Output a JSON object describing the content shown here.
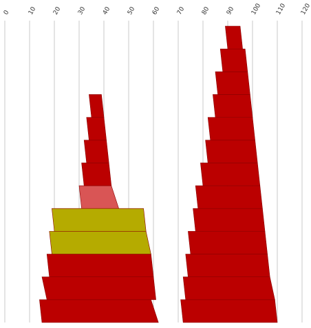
{
  "chart_data": {
    "type": "area",
    "title": "",
    "xlabel": "",
    "ylabel": "",
    "x_axis": {
      "range": [
        0,
        120
      ],
      "ticks": [
        0,
        10,
        20,
        30,
        40,
        50,
        60,
        70,
        80,
        90,
        100,
        110,
        120
      ],
      "tick_labels": [
        "0",
        "10",
        "20",
        "30",
        "40",
        "50",
        "60",
        "70",
        "80",
        "90",
        "100",
        "110",
        "120"
      ],
      "position": "top",
      "grid": true
    },
    "colors": {
      "red": "#bb0000",
      "light_red": "#d95555",
      "olive": "#b5ab00",
      "grid": "#c8c8c8"
    },
    "stacks": [
      {
        "name": "left",
        "bands": [
          {
            "color": "red",
            "left": [
              15,
              14
            ],
            "right": [
              62,
              59
            ]
          },
          {
            "color": "red",
            "left": [
              17,
              15
            ],
            "right": [
              61,
              60
            ]
          },
          {
            "color": "red",
            "left": [
              18,
              17
            ],
            "right": [
              60,
              59
            ]
          },
          {
            "color": "olive",
            "left": [
              19,
              18
            ],
            "right": [
              59,
              57
            ]
          },
          {
            "color": "olive",
            "left": [
              20,
              19
            ],
            "right": [
              57,
              56
            ]
          },
          {
            "color": "light_red",
            "left": [
              31,
              30
            ],
            "right": [
              46,
              43
            ]
          },
          {
            "color": "red",
            "left": [
              32,
              31
            ],
            "right": [
              43,
              42
            ]
          },
          {
            "color": "red",
            "left": [
              33,
              32
            ],
            "right": [
              42,
              41
            ]
          },
          {
            "color": "red",
            "left": [
              34,
              33
            ],
            "right": [
              41,
              40
            ]
          },
          {
            "color": "red",
            "left": [
              35,
              34
            ],
            "right": [
              40,
              39
            ]
          }
        ]
      },
      {
        "name": "right",
        "bands": [
          {
            "color": "red",
            "left": [
              72,
              71
            ],
            "right": [
              110,
              109
            ]
          },
          {
            "color": "red",
            "left": [
              73,
              72
            ],
            "right": [
              109,
              107
            ]
          },
          {
            "color": "red",
            "left": [
              74,
              73
            ],
            "right": [
              107,
              106
            ]
          },
          {
            "color": "red",
            "left": [
              75,
              74
            ],
            "right": [
              106,
              105
            ]
          },
          {
            "color": "red",
            "left": [
              77,
              76
            ],
            "right": [
              105,
              104
            ]
          },
          {
            "color": "red",
            "left": [
              78,
              77
            ],
            "right": [
              104,
              103
            ]
          },
          {
            "color": "red",
            "left": [
              80,
              79
            ],
            "right": [
              103,
              102
            ]
          },
          {
            "color": "red",
            "left": [
              82,
              81
            ],
            "right": [
              102,
              101
            ]
          },
          {
            "color": "red",
            "left": [
              83,
              82
            ],
            "right": [
              101,
              100
            ]
          },
          {
            "color": "red",
            "left": [
              85,
              84
            ],
            "right": [
              100,
              99
            ]
          },
          {
            "color": "red",
            "left": [
              86,
              85
            ],
            "right": [
              99,
              98
            ]
          },
          {
            "color": "red",
            "left": [
              88,
              87
            ],
            "right": [
              98,
              97
            ]
          },
          {
            "color": "red",
            "left": [
              90,
              89
            ],
            "right": [
              96,
              95
            ]
          }
        ]
      }
    ]
  }
}
